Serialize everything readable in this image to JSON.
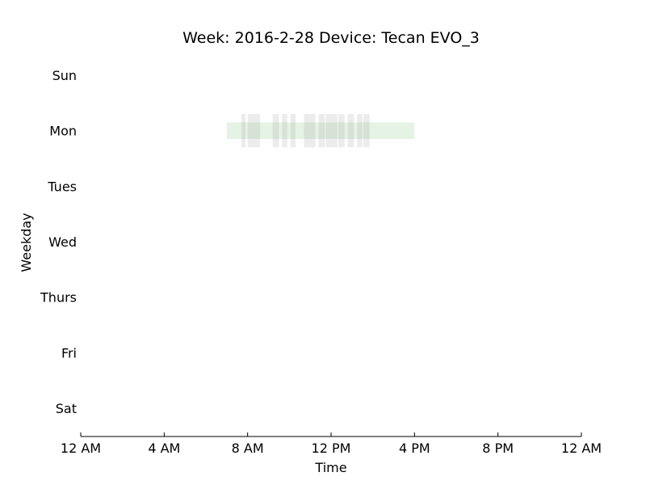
{
  "chart_data": {
    "type": "timeline",
    "title": "Week: 2016-2-28  Device: Tecan EVO_3",
    "xlabel": "Time",
    "ylabel": "Weekday",
    "x_range_hours": [
      0,
      24
    ],
    "x_ticks": [
      {
        "hour": 0,
        "label": "12 AM"
      },
      {
        "hour": 4,
        "label": "4 AM"
      },
      {
        "hour": 8,
        "label": "8 AM"
      },
      {
        "hour": 12,
        "label": "12 PM"
      },
      {
        "hour": 16,
        "label": "4 PM"
      },
      {
        "hour": 20,
        "label": "8 PM"
      },
      {
        "hour": 24,
        "label": "12 AM"
      }
    ],
    "weekdays": [
      "Sun",
      "Mon",
      "Tues",
      "Wed",
      "Thurs",
      "Fri",
      "Sat"
    ],
    "grid": false,
    "series": [
      {
        "color": "#2ca02c",
        "opacity": 0.12,
        "row_half_height": 0.15,
        "intervals": [
          {
            "day": "Mon",
            "start": 7.0,
            "end": 16.0
          }
        ]
      },
      {
        "color": "#a0a0a0",
        "opacity": 0.2,
        "row_half_height": 0.3,
        "intervals": [
          {
            "day": "Mon",
            "start": 7.7,
            "end": 7.9
          },
          {
            "day": "Mon",
            "start": 8.0,
            "end": 8.6
          },
          {
            "day": "Mon",
            "start": 9.2,
            "end": 9.5
          },
          {
            "day": "Mon",
            "start": 9.65,
            "end": 9.9
          },
          {
            "day": "Mon",
            "start": 10.05,
            "end": 10.3
          },
          {
            "day": "Mon",
            "start": 10.7,
            "end": 11.25
          },
          {
            "day": "Mon",
            "start": 11.4,
            "end": 11.7
          },
          {
            "day": "Mon",
            "start": 11.75,
            "end": 12.0
          },
          {
            "day": "Mon",
            "start": 12.0,
            "end": 12.3
          },
          {
            "day": "Mon",
            "start": 12.35,
            "end": 12.65
          },
          {
            "day": "Mon",
            "start": 12.8,
            "end": 13.1
          },
          {
            "day": "Mon",
            "start": 13.25,
            "end": 13.5
          },
          {
            "day": "Mon",
            "start": 13.55,
            "end": 13.85
          }
        ]
      }
    ]
  }
}
